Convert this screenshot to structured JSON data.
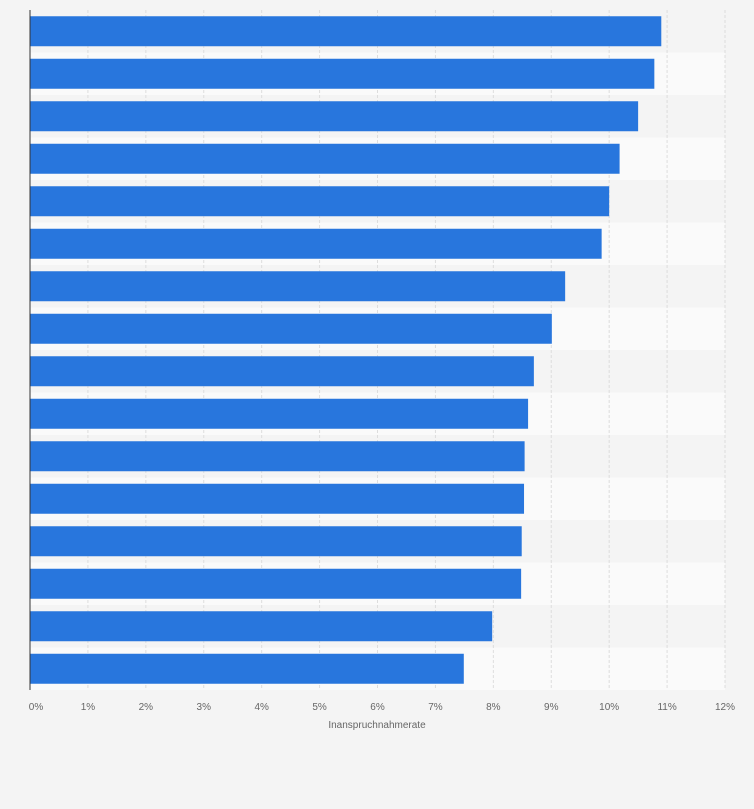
{
  "chart_data": {
    "type": "bar",
    "orientation": "horizontal",
    "categories": [
      "",
      "",
      "",
      "",
      "",
      "",
      "",
      "",
      "",
      "",
      "",
      "",
      "",
      "",
      "",
      ""
    ],
    "values": [
      10.9,
      10.78,
      10.5,
      10.18,
      10.0,
      9.87,
      9.24,
      9.01,
      8.7,
      8.6,
      8.54,
      8.53,
      8.49,
      8.48,
      7.98,
      7.49
    ],
    "xlabel": "Inanspruchnahmerate",
    "xlim": [
      0,
      12
    ],
    "xticks": [
      "0%",
      "1%",
      "2%",
      "3%",
      "4%",
      "5%",
      "6%",
      "7%",
      "8%",
      "9%",
      "10%",
      "11%",
      "12%"
    ],
    "bar_color": "#2876dd",
    "band_colors": [
      "#f4f4f4",
      "#fafafa"
    ],
    "grid": true,
    "legend": "none"
  }
}
